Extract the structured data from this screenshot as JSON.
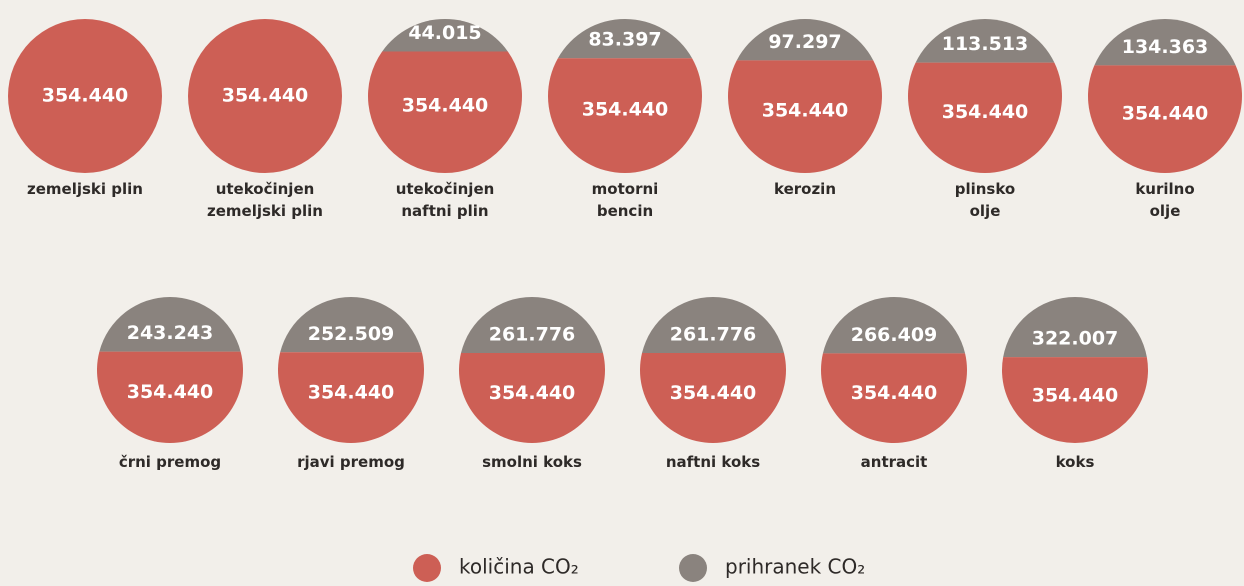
{
  "chart_data": {
    "type": "split-circle",
    "categories": [
      "zemeljski plin",
      "utekočinjen\nzemeljski plin",
      "utekočinjen\nnaftni plin",
      "motorni\nbencin",
      "kerozin",
      "plinsko\nolje",
      "kurilno\nolje",
      "črni premog",
      "rjavi premog",
      "smolni koks",
      "naftni koks",
      "antracit",
      "koks"
    ],
    "series": [
      {
        "name": "količina CO₂",
        "color": "#cd5f55",
        "values": [
          354440,
          354440,
          354440,
          354440,
          354440,
          354440,
          354440,
          354440,
          354440,
          354440,
          354440,
          354440,
          354440
        ],
        "value_labels": [
          "354.440",
          "354.440",
          "354.440",
          "354.440",
          "354.440",
          "354.440",
          "354.440",
          "354.440",
          "354.440",
          "354.440",
          "354.440",
          "354.440",
          "354.440"
        ]
      },
      {
        "name": "prihranek CO₂",
        "color": "#8a837e",
        "values": [
          null,
          null,
          44015,
          83397,
          97297,
          113513,
          134363,
          243243,
          252509,
          261776,
          261776,
          266409,
          322007
        ],
        "value_labels": [
          null,
          null,
          "44.015",
          "83.397",
          "97.297",
          "113.513",
          "134.363",
          "243.243",
          "252.509",
          "261.776",
          "261.776",
          "266.409",
          "322.007"
        ]
      }
    ]
  }
}
